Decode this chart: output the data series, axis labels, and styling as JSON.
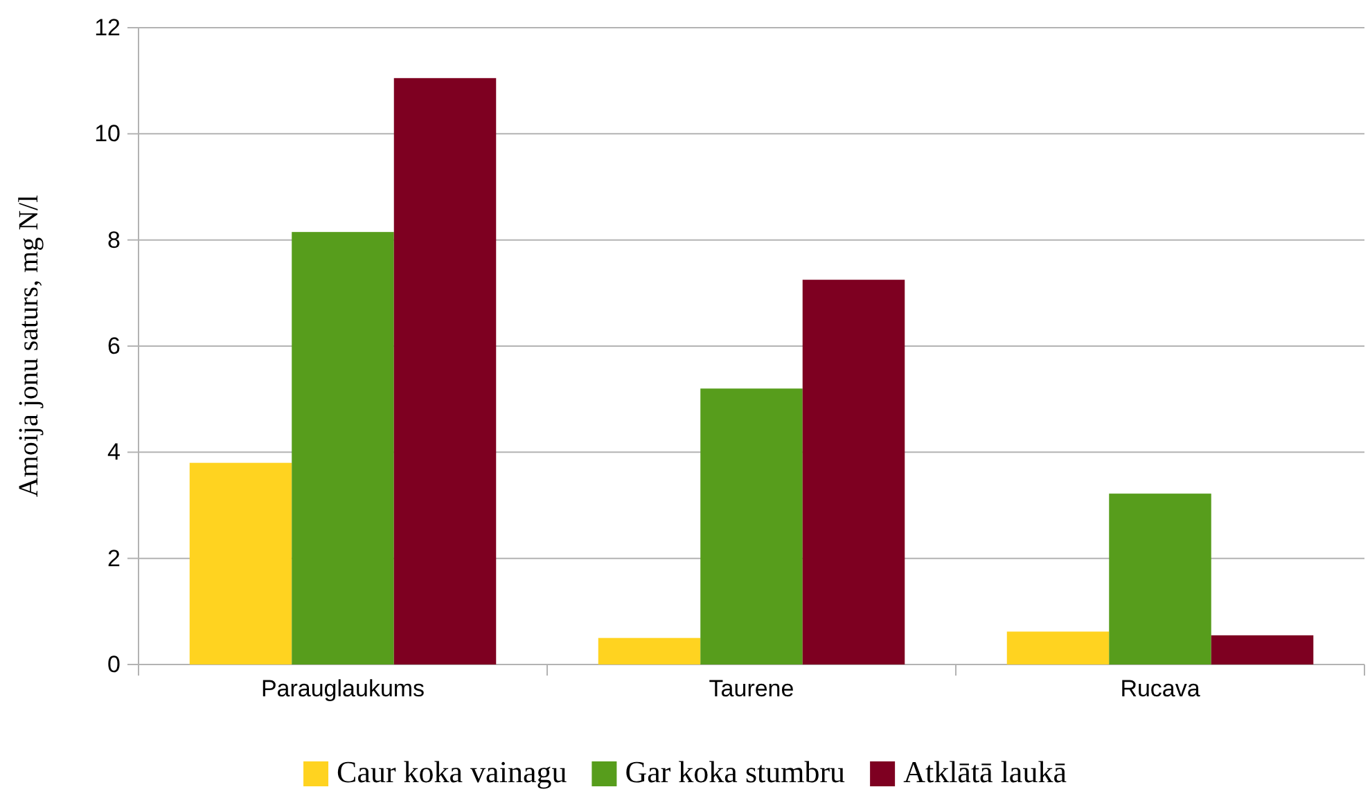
{
  "chart_data": {
    "type": "bar",
    "ylabel": "Amoija jonu saturs, mg N/l",
    "categories": [
      "Parauglaukums",
      "Taurene",
      "Rucava"
    ],
    "series": [
      {
        "name": "Caur koka vainagu",
        "color": "#ffd320",
        "values": [
          3.8,
          0.5,
          0.62
        ]
      },
      {
        "name": "Gar koka stumbru",
        "color": "#579d1c",
        "values": [
          8.15,
          5.2,
          3.22
        ]
      },
      {
        "name": "Atklātā laukā",
        "color": "#7e0021",
        "values": [
          11.05,
          7.25,
          0.55
        ]
      }
    ],
    "ylim": [
      0,
      12
    ],
    "yticks": [
      0,
      2,
      4,
      6,
      8,
      10,
      12
    ],
    "grid": "y",
    "legend": "bottom"
  }
}
